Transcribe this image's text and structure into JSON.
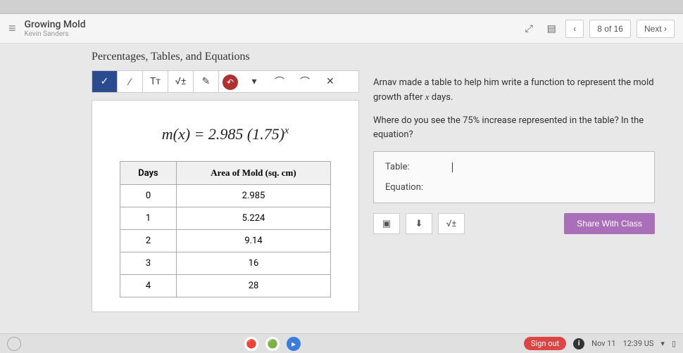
{
  "header": {
    "title": "Growing Mold",
    "subtitle": "Kevin Sanders",
    "progress": "8 of 16",
    "prev": "‹",
    "next": "Next  ›"
  },
  "section_title": "Percentages, Tables, and Equations",
  "toolbar": {
    "items": [
      "✓",
      "∕",
      "Tт",
      "√±",
      "✎"
    ],
    "undo_icon": "↶",
    "dropdown": "▾",
    "redo1": "⌒",
    "redo2": "⌒",
    "close": "✕"
  },
  "equation": "m(x) = 2.985 (1.75)",
  "equation_exp": "x",
  "table": {
    "columns": [
      "Days",
      "Area of Mold (sq. cm)"
    ],
    "rows": [
      [
        "0",
        "2.985"
      ],
      [
        "1",
        "5.224"
      ],
      [
        "2",
        "9.14"
      ],
      [
        "3",
        "16"
      ],
      [
        "4",
        "28"
      ]
    ]
  },
  "prompt": {
    "p1a": "Arnav made a table to help him write a function to represent the mold growth after ",
    "p1var": "x",
    "p1b": " days.",
    "p2": "Where do you see the 75% increase represented in the table? In the equation?"
  },
  "answer": {
    "label_table": "Table:",
    "label_equation": "Equation:"
  },
  "actions": {
    "image": "▣",
    "mic": "⬇",
    "math": "√±",
    "share": "Share With Class"
  },
  "taskbar": {
    "signout": "Sign out",
    "date": "Nov 11",
    "time": "12:39 US"
  }
}
